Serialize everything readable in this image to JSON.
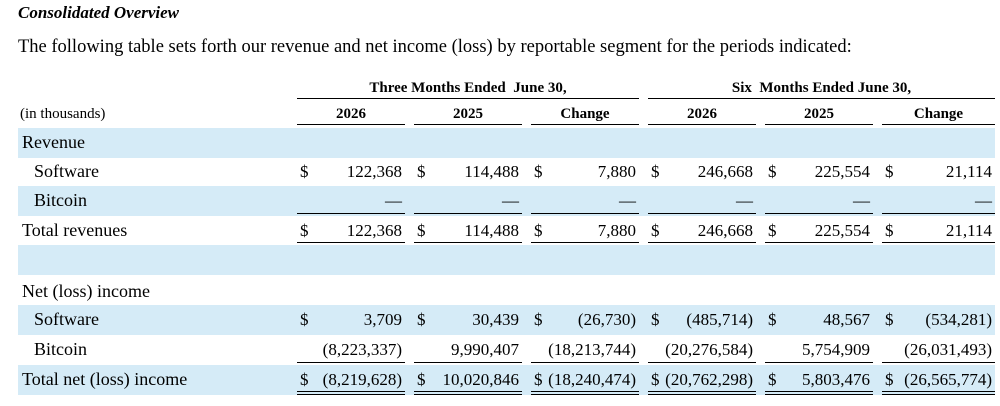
{
  "section_title": "Consolidated Overview",
  "intro": "The following table sets forth our revenue and net income (loss) by reportable segment for the periods indicated:",
  "periods": [
    "Three Months Ended  June 30,",
    "Six  Months Ended June 30,"
  ],
  "units": "(in thousands)",
  "columns": [
    "2026",
    "2025",
    "Change",
    "2026",
    "2025",
    "Change"
  ],
  "rows": {
    "revenue_header": {
      "label": "Revenue"
    },
    "software_rev": {
      "label": "Software",
      "dollar": "$",
      "values": [
        "122,368",
        "114,488",
        "7,880",
        "246,668",
        "225,554",
        "21,114"
      ]
    },
    "bitcoin_rev": {
      "label": "Bitcoin",
      "values": [
        "—",
        "—",
        "—",
        "—",
        "—",
        "—"
      ]
    },
    "total_rev": {
      "label": "Total revenues",
      "dollar": "$",
      "values": [
        "122,368",
        "114,488",
        "7,880",
        "246,668",
        "225,554",
        "21,114"
      ]
    },
    "net_header": {
      "label": "Net (loss) income"
    },
    "software_net": {
      "label": "Software",
      "dollar": "$",
      "values": [
        "3,709",
        "30,439",
        "(26,730)",
        "(485,714)",
        "48,567",
        "(534,281)"
      ]
    },
    "bitcoin_net": {
      "label": "Bitcoin",
      "values": [
        "(8,223,337)",
        "9,990,407",
        "(18,213,744)",
        "(20,276,584)",
        "5,754,909",
        "(26,031,493)"
      ]
    },
    "total_net": {
      "label": "Total net (loss) income",
      "dollar": "$",
      "values": [
        "(8,219,628)",
        "10,020,846",
        "(18,240,474)",
        "(20,762,298)",
        "5,803,476",
        "(26,565,774)"
      ]
    }
  }
}
